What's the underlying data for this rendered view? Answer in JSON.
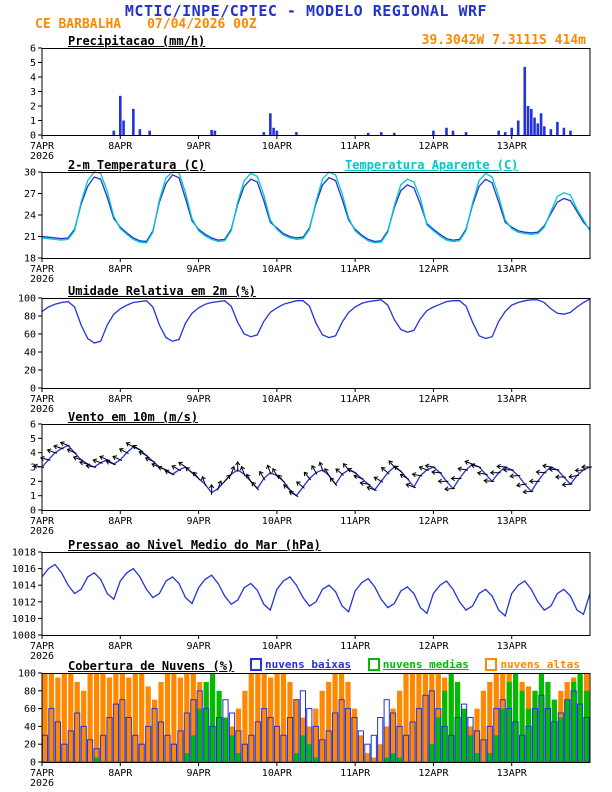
{
  "header": {
    "title": "MCTIC/INPE/CPTEC - MODELO REGIONAL WRF",
    "station": "CE BARBALHA",
    "run": "07/04/2026 00Z",
    "location": "39.3042W 7.3111S 414m"
  },
  "colors": {
    "blue": "#2233dd",
    "cyan": "#00c8c8",
    "orange": "#ff8800",
    "green": "#00bb00",
    "black": "#000000",
    "title": "#2233cc"
  },
  "x_axis": {
    "tick_labels": [
      "7APR",
      "8APR",
      "9APR",
      "10APR",
      "11APR",
      "12APR",
      "13APR"
    ],
    "year_label": "2026",
    "hours_total": 168
  },
  "chart_data": [
    {
      "type": "bar",
      "title": "Precipitacao (mm/h)",
      "ylim": [
        0,
        6
      ],
      "yticks": [
        0,
        1,
        2,
        3,
        4,
        5,
        6
      ],
      "series": [
        {
          "name": "Precipitacao",
          "type": "bars",
          "color": "blue",
          "points": [
            [
              22,
              0.3
            ],
            [
              24,
              2.7
            ],
            [
              25,
              1.0
            ],
            [
              28,
              1.8
            ],
            [
              30,
              0.4
            ],
            [
              33,
              0.3
            ],
            [
              52,
              0.35
            ],
            [
              53,
              0.3
            ],
            [
              68,
              0.2
            ],
            [
              70,
              1.5
            ],
            [
              71,
              0.5
            ],
            [
              72,
              0.3
            ],
            [
              78,
              0.2
            ],
            [
              100,
              0.15
            ],
            [
              104,
              0.2
            ],
            [
              108,
              0.15
            ],
            [
              120,
              0.3
            ],
            [
              124,
              0.5
            ],
            [
              126,
              0.3
            ],
            [
              130,
              0.2
            ],
            [
              140,
              0.3
            ],
            [
              142,
              0.2
            ],
            [
              144,
              0.5
            ],
            [
              146,
              1.0
            ],
            [
              148,
              4.7
            ],
            [
              149,
              2.0
            ],
            [
              150,
              1.8
            ],
            [
              151,
              1.2
            ],
            [
              152,
              0.8
            ],
            [
              153,
              1.5
            ],
            [
              154,
              0.6
            ],
            [
              156,
              0.4
            ],
            [
              158,
              0.9
            ],
            [
              160,
              0.5
            ],
            [
              162,
              0.3
            ]
          ]
        }
      ]
    },
    {
      "type": "line",
      "title": "2-m Temperatura (C)",
      "ylim": [
        18,
        30
      ],
      "yticks": [
        18,
        21,
        24,
        27,
        30
      ],
      "series": [
        {
          "name": "2-m Temperatura",
          "type": "line",
          "color": "blue",
          "step_hours": 2,
          "values": [
            21.0,
            20.9,
            20.8,
            20.7,
            20.8,
            22.0,
            25.5,
            28.0,
            29.3,
            29.0,
            26.5,
            23.5,
            22.3,
            21.5,
            20.8,
            20.4,
            20.3,
            21.8,
            25.8,
            28.4,
            29.6,
            29.2,
            26.3,
            23.2,
            22.0,
            21.3,
            20.8,
            20.5,
            20.6,
            22.0,
            25.5,
            28.0,
            29.0,
            28.6,
            26.0,
            23.0,
            22.2,
            21.4,
            21.0,
            20.8,
            20.9,
            22.2,
            25.6,
            28.2,
            29.2,
            28.8,
            26.2,
            23.3,
            22.0,
            21.2,
            20.6,
            20.3,
            20.4,
            21.8,
            25.0,
            27.4,
            28.2,
            27.8,
            25.5,
            22.8,
            22.0,
            21.3,
            20.7,
            20.5,
            20.6,
            22.0,
            25.4,
            28.0,
            29.0,
            28.5,
            25.8,
            23.0,
            22.3,
            21.8,
            21.6,
            21.5,
            21.6,
            22.5,
            24.2,
            25.8,
            26.3,
            26.0,
            24.5,
            23.0,
            22.0
          ]
        },
        {
          "name": "Temperatura Aparente (C)",
          "type": "line",
          "color": "cyan",
          "step_hours": 2,
          "values": [
            20.8,
            20.7,
            20.6,
            20.5,
            20.6,
            21.8,
            25.8,
            28.8,
            30.0,
            29.8,
            27.3,
            23.8,
            22.1,
            21.3,
            20.6,
            20.2,
            20.1,
            21.6,
            26.1,
            29.2,
            30.0,
            29.9,
            27.1,
            23.5,
            21.8,
            21.1,
            20.6,
            20.3,
            20.4,
            21.8,
            25.8,
            28.8,
            29.8,
            29.4,
            26.8,
            23.3,
            22.0,
            21.2,
            20.8,
            20.6,
            20.7,
            22.0,
            25.9,
            29.0,
            30.0,
            29.6,
            27.0,
            23.6,
            21.8,
            21.0,
            20.4,
            20.1,
            20.2,
            21.6,
            25.3,
            28.2,
            29.0,
            28.6,
            26.3,
            22.6,
            21.8,
            21.1,
            20.5,
            20.3,
            20.4,
            21.8,
            25.7,
            28.8,
            29.8,
            29.3,
            26.6,
            23.3,
            22.1,
            21.6,
            21.4,
            21.3,
            21.4,
            22.3,
            24.5,
            26.6,
            27.1,
            26.8,
            24.8,
            23.3,
            21.8
          ]
        }
      ]
    },
    {
      "type": "line",
      "title": "Umidade Relativa em 2m (%)",
      "ylim": [
        0,
        100
      ],
      "yticks": [
        0,
        20,
        40,
        60,
        80,
        100
      ],
      "series": [
        {
          "name": "Umidade Relativa",
          "type": "line",
          "color": "blue",
          "step_hours": 2,
          "values": [
            85,
            90,
            93,
            95,
            96,
            90,
            70,
            55,
            50,
            52,
            70,
            82,
            88,
            92,
            95,
            96,
            97,
            90,
            70,
            56,
            52,
            54,
            72,
            83,
            89,
            93,
            95,
            96,
            97,
            91,
            73,
            60,
            57,
            59,
            74,
            84,
            89,
            93,
            95,
            97,
            97,
            91,
            72,
            59,
            56,
            58,
            73,
            84,
            90,
            94,
            96,
            97,
            98,
            92,
            76,
            65,
            62,
            64,
            77,
            86,
            90,
            93,
            96,
            97,
            97,
            91,
            73,
            58,
            55,
            57,
            74,
            85,
            92,
            95,
            97,
            98,
            98,
            95,
            88,
            83,
            82,
            84,
            90,
            95,
            99
          ]
        }
      ]
    },
    {
      "type": "line",
      "title": "Vento em 10m (m/s)",
      "ylim": [
        0,
        6
      ],
      "yticks": [
        0,
        1,
        2,
        3,
        4,
        5,
        6
      ],
      "series": [
        {
          "name": "Vento em 10m",
          "type": "line",
          "color": "blue",
          "step_hours": 2,
          "values": [
            3.0,
            3.5,
            4.0,
            4.3,
            4.5,
            4.0,
            3.5,
            3.2,
            3.0,
            3.3,
            3.5,
            3.2,
            3.5,
            4.0,
            4.4,
            4.2,
            3.8,
            3.4,
            3.0,
            2.8,
            2.5,
            2.8,
            3.0,
            2.6,
            2.2,
            1.8,
            1.2,
            1.5,
            2.0,
            2.5,
            2.8,
            2.5,
            2.0,
            1.5,
            2.2,
            2.6,
            2.4,
            2.0,
            1.4,
            1.0,
            1.6,
            2.2,
            2.6,
            2.8,
            2.4,
            1.8,
            2.5,
            2.8,
            2.6,
            2.2,
            1.8,
            1.4,
            2.0,
            2.6,
            3.0,
            2.7,
            2.2,
            1.6,
            2.4,
            2.8,
            3.0,
            2.6,
            2.0,
            1.5,
            2.2,
            2.8,
            3.2,
            3.0,
            2.5,
            2.0,
            2.6,
            3.0,
            2.8,
            2.4,
            1.8,
            1.3,
            2.0,
            2.6,
            3.0,
            2.8,
            2.3,
            1.8,
            2.4,
            2.8,
            3.0
          ]
        },
        {
          "name": "Direcao do vento",
          "type": "barbs",
          "color": "black",
          "step_hours": 2,
          "dirs": [
            100,
            105,
            110,
            108,
            112,
            115,
            110,
            105,
            100,
            110,
            115,
            112,
            115,
            118,
            120,
            122,
            118,
            115,
            112,
            110,
            115,
            120,
            125,
            130,
            140,
            160,
            180,
            200,
            220,
            200,
            180,
            160,
            150,
            140,
            150,
            160,
            150,
            140,
            130,
            120,
            130,
            140,
            150,
            160,
            150,
            140,
            130,
            140,
            120,
            110,
            100,
            110,
            120,
            130,
            140,
            130,
            120,
            110,
            100,
            110,
            100,
            95,
            90,
            85,
            90,
            100,
            110,
            105,
            100,
            95,
            90,
            95,
            90,
            85,
            80,
            85,
            90,
            95,
            100,
            95,
            90,
            85,
            80,
            85,
            90
          ]
        }
      ]
    },
    {
      "type": "line",
      "title": "Pressao ao Nivel Medio do Mar (hPa)",
      "ylim": [
        1008,
        1018
      ],
      "yticks": [
        1008,
        1010,
        1012,
        1014,
        1016,
        1018
      ],
      "series": [
        {
          "name": "Pressao ao Nivel Medio do Mar",
          "type": "line",
          "color": "blue",
          "step_hours": 2,
          "values": [
            1015.0,
            1016.0,
            1016.5,
            1015.5,
            1014.0,
            1013.0,
            1013.5,
            1015.0,
            1015.5,
            1014.7,
            1013.0,
            1012.3,
            1014.5,
            1015.5,
            1016.0,
            1015.0,
            1013.5,
            1012.5,
            1013.0,
            1014.5,
            1015.0,
            1014.2,
            1012.5,
            1011.8,
            1013.7,
            1014.7,
            1015.2,
            1014.2,
            1012.7,
            1011.7,
            1012.2,
            1013.7,
            1014.2,
            1013.4,
            1011.7,
            1011.0,
            1013.5,
            1014.5,
            1015.0,
            1014.0,
            1012.5,
            1011.5,
            1012.0,
            1013.5,
            1014.0,
            1013.2,
            1011.5,
            1010.8,
            1013.3,
            1014.3,
            1014.8,
            1013.8,
            1012.3,
            1011.3,
            1011.8,
            1013.3,
            1013.8,
            1013.0,
            1011.3,
            1010.6,
            1013.0,
            1014.0,
            1014.5,
            1013.5,
            1012.0,
            1011.0,
            1011.5,
            1013.0,
            1013.5,
            1012.7,
            1011.0,
            1010.3,
            1013.0,
            1014.0,
            1014.5,
            1013.5,
            1012.0,
            1011.0,
            1011.5,
            1013.0,
            1013.5,
            1012.7,
            1011.0,
            1010.5,
            1013.0
          ]
        }
      ]
    },
    {
      "type": "bar",
      "title": "Cobertura de Nuvens (%)",
      "ylim": [
        0,
        100
      ],
      "yticks": [
        0,
        20,
        40,
        60,
        80,
        100
      ],
      "legend": [
        {
          "label": "nuvens baixas",
          "color": "blue"
        },
        {
          "label": "nuvens medias",
          "color": "green"
        },
        {
          "label": "nuvens altas",
          "color": "orange"
        }
      ],
      "series": [
        {
          "name": "nuvens altas",
          "type": "fillbars",
          "color": "orange",
          "step_hours": 2,
          "values": [
            100,
            100,
            95,
            100,
            100,
            90,
            80,
            100,
            100,
            100,
            95,
            100,
            100,
            95,
            100,
            100,
            85,
            70,
            90,
            100,
            100,
            95,
            100,
            100,
            90,
            80,
            60,
            40,
            30,
            40,
            60,
            80,
            100,
            100,
            100,
            95,
            100,
            100,
            90,
            70,
            50,
            40,
            60,
            80,
            90,
            100,
            100,
            90,
            60,
            30,
            10,
            5,
            20,
            40,
            60,
            80,
            100,
            100,
            100,
            100,
            100,
            100,
            95,
            90,
            70,
            50,
            40,
            60,
            80,
            90,
            100,
            100,
            100,
            95,
            90,
            85,
            80,
            70,
            60,
            70,
            80,
            90,
            95,
            100,
            100
          ]
        },
        {
          "name": "nuvens medias",
          "type": "fillbars",
          "color": "green",
          "step_hours": 2,
          "values": [
            0,
            0,
            0,
            0,
            0,
            0,
            0,
            0,
            5,
            0,
            0,
            0,
            0,
            0,
            0,
            0,
            0,
            0,
            0,
            0,
            0,
            0,
            10,
            30,
            60,
            90,
            100,
            80,
            50,
            30,
            10,
            0,
            0,
            0,
            0,
            0,
            0,
            0,
            0,
            10,
            30,
            20,
            5,
            0,
            0,
            0,
            0,
            0,
            0,
            0,
            0,
            0,
            0,
            5,
            10,
            5,
            0,
            0,
            0,
            0,
            20,
            50,
            80,
            100,
            90,
            60,
            30,
            10,
            0,
            10,
            30,
            60,
            90,
            100,
            80,
            60,
            80,
            100,
            90,
            70,
            50,
            70,
            90,
            100,
            80
          ]
        },
        {
          "name": "nuvens baixas",
          "type": "outlinebars",
          "color": "blue",
          "step_hours": 2,
          "values": [
            30,
            60,
            45,
            20,
            35,
            55,
            40,
            25,
            15,
            30,
            50,
            65,
            70,
            50,
            30,
            20,
            40,
            60,
            45,
            30,
            20,
            35,
            55,
            70,
            80,
            60,
            40,
            50,
            70,
            55,
            35,
            20,
            30,
            45,
            60,
            50,
            40,
            30,
            50,
            70,
            80,
            60,
            40,
            25,
            35,
            55,
            70,
            60,
            50,
            35,
            20,
            30,
            50,
            70,
            55,
            40,
            30,
            45,
            60,
            75,
            80,
            60,
            40,
            30,
            50,
            65,
            50,
            35,
            25,
            40,
            60,
            70,
            60,
            45,
            30,
            40,
            60,
            75,
            60,
            45,
            55,
            70,
            80,
            65,
            50
          ]
        }
      ]
    }
  ]
}
